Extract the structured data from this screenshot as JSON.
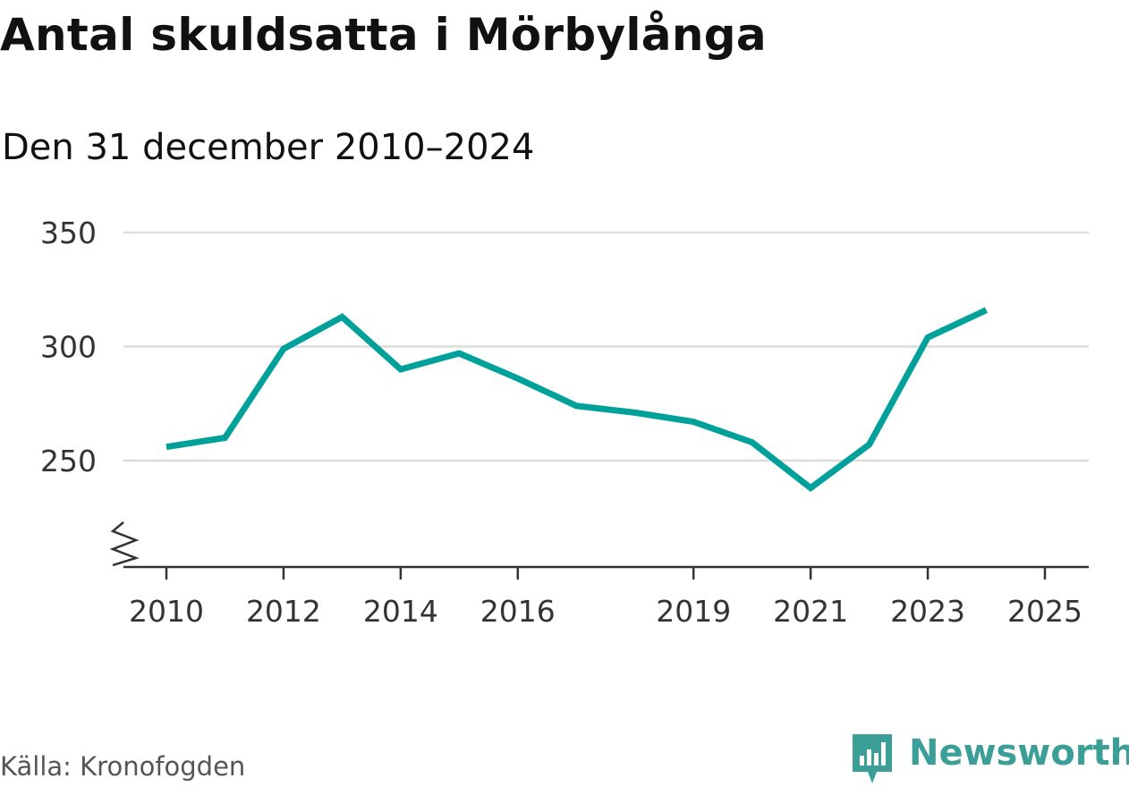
{
  "title": "Antal skuldsatta i Mörbylånga",
  "subtitle": "Den 31 december 2010–2024",
  "source": "Källa: Kronofogden",
  "brand": {
    "name": "Newsworthy",
    "logo_icon": "newsworthy-logo-icon",
    "color": "#3b9f98"
  },
  "chart_data": {
    "type": "line",
    "title": "Antal skuldsatta i Mörbylånga",
    "subtitle": "Den 31 december 2010–2024",
    "xlabel": "",
    "ylabel": "",
    "x": [
      2010,
      2011,
      2012,
      2013,
      2014,
      2015,
      2016,
      2017,
      2018,
      2019,
      2020,
      2021,
      2022,
      2023,
      2024
    ],
    "series": [
      {
        "name": "Antal skuldsatta",
        "color": "#00a19a",
        "values": [
          256,
          260,
          299,
          313,
          290,
          297,
          286,
          274,
          271,
          267,
          258,
          238,
          257,
          304,
          316
        ]
      }
    ],
    "ylim": [
      200,
      350
    ],
    "yticks": [
      250,
      300,
      350
    ],
    "xlim": [
      2009.3,
      2025.8
    ],
    "xticks": [
      2010,
      2012,
      2014,
      2016,
      2019,
      2021,
      2023,
      2025
    ],
    "axis_break": true,
    "grid": true
  }
}
